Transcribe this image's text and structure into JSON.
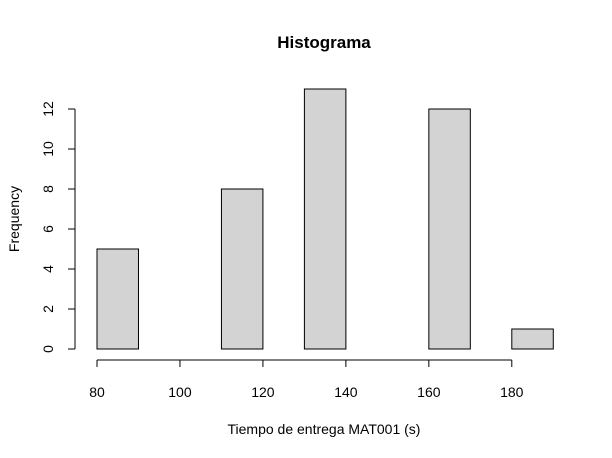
{
  "chart_data": {
    "type": "bar",
    "title": "Histograma",
    "xlabel": "Tiempo de entrega MAT001 (s)",
    "ylabel": "Frequency",
    "bins": [
      {
        "from": 80,
        "to": 90,
        "count": 5
      },
      {
        "from": 90,
        "to": 100,
        "count": 0
      },
      {
        "from": 100,
        "to": 110,
        "count": 0
      },
      {
        "from": 110,
        "to": 120,
        "count": 8
      },
      {
        "from": 120,
        "to": 130,
        "count": 0
      },
      {
        "from": 130,
        "to": 140,
        "count": 13
      },
      {
        "from": 140,
        "to": 150,
        "count": 0
      },
      {
        "from": 150,
        "to": 160,
        "count": 0
      },
      {
        "from": 160,
        "to": 170,
        "count": 12
      },
      {
        "from": 170,
        "to": 180,
        "count": 0
      },
      {
        "from": 180,
        "to": 190,
        "count": 1
      }
    ],
    "xlim": [
      80,
      190
    ],
    "ylim": [
      0,
      13
    ],
    "x_ticks": [
      80,
      100,
      120,
      140,
      160,
      180
    ],
    "y_ticks": [
      0,
      2,
      4,
      6,
      8,
      10,
      12
    ],
    "bar_color": "#d3d3d3",
    "grid": false
  }
}
